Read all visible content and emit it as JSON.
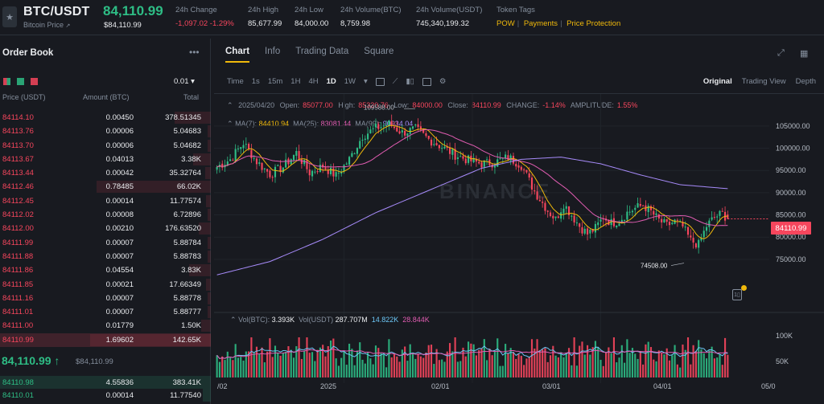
{
  "header": {
    "pair": "BTC/USDT",
    "pair_sub": "Bitcoin Price",
    "price": "84,110.99",
    "price_sub": "$84,110.99",
    "stats": [
      {
        "label": "24h Change",
        "value": "-1,097.02 -1.29%",
        "color": "red"
      },
      {
        "label": "24h High",
        "value": "85,677.99",
        "color": "white"
      },
      {
        "label": "24h Low",
        "value": "84,000.00",
        "color": "white"
      },
      {
        "label": "24h Volume(BTC)",
        "value": "8,759.98",
        "color": "white"
      },
      {
        "label": "24h Volume(USDT)",
        "value": "745,340,199.32",
        "color": "white"
      }
    ],
    "token_tags_label": "Token Tags",
    "token_tags": [
      "POW",
      "Payments",
      "Price Protection"
    ]
  },
  "orderbook": {
    "title": "Order Book",
    "more": "•••",
    "tick": "0.01 ▾",
    "col_price": "Price (USDT)",
    "col_amount": "Amount (BTC)",
    "col_total": "Total",
    "asks": [
      {
        "price": "84114.10",
        "amount": "0.00450",
        "total": "378.51345",
        "depth": 0.3
      },
      {
        "price": "84113.76",
        "amount": "0.00006",
        "total": "5.04683",
        "depth": 0.03
      },
      {
        "price": "84113.70",
        "amount": "0.00006",
        "total": "5.04682",
        "depth": 0.03
      },
      {
        "price": "84113.67",
        "amount": "0.04013",
        "total": "3.38K",
        "depth": 0.15
      },
      {
        "price": "84113.44",
        "amount": "0.00042",
        "total": "35.32764",
        "depth": 0.05
      },
      {
        "price": "84112.46",
        "amount": "0.78485",
        "total": "66.02K",
        "depth": 0.95
      },
      {
        "price": "84112.45",
        "amount": "0.00014",
        "total": "11.77574",
        "depth": 0.04
      },
      {
        "price": "84112.02",
        "amount": "0.00008",
        "total": "6.72896",
        "depth": 0.03
      },
      {
        "price": "84112.00",
        "amount": "0.00210",
        "total": "176.63520",
        "depth": 0.1
      },
      {
        "price": "84111.99",
        "amount": "0.00007",
        "total": "5.88784",
        "depth": 0.03
      },
      {
        "price": "84111.88",
        "amount": "0.00007",
        "total": "5.88783",
        "depth": 0.03
      },
      {
        "price": "84111.86",
        "amount": "0.04554",
        "total": "3.83K",
        "depth": 0.18
      },
      {
        "price": "84111.85",
        "amount": "0.00021",
        "total": "17.66349",
        "depth": 0.04
      },
      {
        "price": "84111.16",
        "amount": "0.00007",
        "total": "5.88778",
        "depth": 0.03
      },
      {
        "price": "84111.01",
        "amount": "0.00007",
        "total": "5.88777",
        "depth": 0.03
      },
      {
        "price": "84111.00",
        "amount": "0.01779",
        "total": "1.50K",
        "depth": 0.08
      },
      {
        "price": "84110.99",
        "amount": "1.69602",
        "total": "142.65K",
        "depth": 1.0
      }
    ],
    "last_price": "84,110.99",
    "last_arrow": "↑",
    "last_sub": "$84,110.99",
    "bids": [
      {
        "price": "84110.98",
        "amount": "4.55836",
        "total": "383.41K",
        "depth": 1.0
      },
      {
        "price": "84110.01",
        "amount": "0.00014",
        "total": "11.77540",
        "depth": 0.04
      }
    ]
  },
  "chart_panel": {
    "tabs": [
      "Chart",
      "Info",
      "Trading Data",
      "Square"
    ],
    "intervals": [
      "Time",
      "1s",
      "15m",
      "1H",
      "4H",
      "1D",
      "1W"
    ],
    "selected_interval": "1D",
    "views": [
      "Original",
      "Trading View",
      "Depth"
    ],
    "selected_view": "Original",
    "info_line": {
      "date": "2025/04/20",
      "open_label": "Open:",
      "open": "85077.00",
      "high_label": "High:",
      "high": "85320.76",
      "low_label": "Low:",
      "low": "84000.00",
      "close_label": "Close:",
      "close": "84110.99",
      "change_label": "CHANGE:",
      "change": "-1.14%",
      "amp_label": "AMPLITUDE:",
      "amp": "1.55%"
    },
    "ma_line": {
      "ma7_label": "MA(7):",
      "ma7": "84410.94",
      "ma25_label": "MA(25):",
      "ma25": "83081.44",
      "ma99_label": "MA(99):",
      "ma99": "90934.04"
    },
    "vol_line": {
      "vol_btc_label": "Vol(BTC):",
      "vol_btc": "3.393K",
      "vol_usdt_label": "Vol(USDT)",
      "vol_usdt": "287.707M",
      "v1": "14.822K",
      "v2": "28.844K"
    },
    "price_tag": "84110.99",
    "watermark": "BINANCE"
  },
  "chart_data": {
    "type": "candlestick",
    "interval": "1D",
    "y_ticks": [
      105000,
      100000,
      95000,
      90000,
      85000,
      80000,
      75000
    ],
    "y_tick_labels": [
      "105000.00",
      "100000.00",
      "95000.00",
      "90000.00",
      "85000.00",
      "80000.00",
      "75000.00"
    ],
    "ylim": [
      71000,
      109500
    ],
    "x_tick_labels": [
      "/02",
      "2025",
      "02/01",
      "03/01",
      "04/01",
      "05/0"
    ],
    "vol_ticks": [
      "100K",
      "50K"
    ],
    "annotations": [
      {
        "text": "109588.00",
        "kind": "high"
      },
      {
        "text": "74508.00",
        "kind": "low"
      }
    ],
    "close_anchors": [
      [
        0,
        95800
      ],
      [
        5,
        97500
      ],
      [
        10,
        101200
      ],
      [
        15,
        97000
      ],
      [
        20,
        94200
      ],
      [
        25,
        95800
      ],
      [
        30,
        99000
      ],
      [
        35,
        94500
      ],
      [
        40,
        96000
      ],
      [
        45,
        93800
      ],
      [
        50,
        97500
      ],
      [
        55,
        102800
      ],
      [
        60,
        104500
      ],
      [
        65,
        105500
      ],
      [
        70,
        103500
      ],
      [
        75,
        104300
      ],
      [
        80,
        102000
      ],
      [
        85,
        100300
      ],
      [
        90,
        98500
      ],
      [
        95,
        97300
      ],
      [
        100,
        96500
      ],
      [
        105,
        96800
      ],
      [
        110,
        98000
      ],
      [
        115,
        96200
      ],
      [
        120,
        90300
      ],
      [
        125,
        86000
      ],
      [
        128,
        84000
      ],
      [
        131,
        87500
      ],
      [
        134,
        85000
      ],
      [
        137,
        82500
      ],
      [
        140,
        80700
      ],
      [
        143,
        82000
      ],
      [
        146,
        84500
      ],
      [
        149,
        83200
      ],
      [
        152,
        83700
      ],
      [
        155,
        85500
      ],
      [
        158,
        86500
      ],
      [
        161,
        87200
      ],
      [
        164,
        85700
      ],
      [
        167,
        83800
      ],
      [
        170,
        82600
      ],
      [
        173,
        83500
      ],
      [
        176,
        82300
      ],
      [
        179,
        79200
      ],
      [
        182,
        78300
      ],
      [
        185,
        82500
      ],
      [
        188,
        84500
      ],
      [
        191,
        85300
      ],
      [
        193,
        84100
      ]
    ],
    "ma99_anchors": [
      [
        0,
        71500
      ],
      [
        20,
        74500
      ],
      [
        40,
        79500
      ],
      [
        60,
        85500
      ],
      [
        80,
        90500
      ],
      [
        100,
        95500
      ],
      [
        115,
        97500
      ],
      [
        130,
        98000
      ],
      [
        145,
        96500
      ],
      [
        160,
        94000
      ],
      [
        175,
        91800
      ],
      [
        193,
        90900
      ]
    ]
  }
}
